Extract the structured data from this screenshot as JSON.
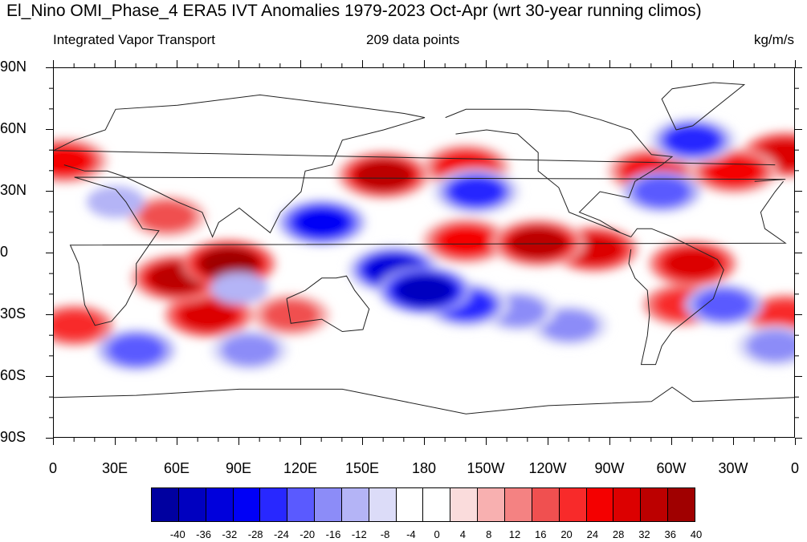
{
  "title": "El_Nino OMI_Phase_4 ERA5 IVT Anomalies 1979-2023 Oct-Apr (wrt 30-year running climos)",
  "subtitle_left": "Integrated Vapor Transport",
  "subtitle_center": "209 data points",
  "subtitle_right": "kg/m/s",
  "lat_labels": [
    "90N",
    "60N",
    "30N",
    "0",
    "30S",
    "60S",
    "90S"
  ],
  "lon_labels": [
    "0",
    "30E",
    "60E",
    "90E",
    "120E",
    "150E",
    "180",
    "150W",
    "120W",
    "90W",
    "60W",
    "30W",
    "0"
  ],
  "colorbar": {
    "labels": [
      "-40",
      "-36",
      "-32",
      "-28",
      "-24",
      "-20",
      "-16",
      "-12",
      "-8",
      "-4",
      "0",
      "4",
      "8",
      "12",
      "16",
      "20",
      "24",
      "28",
      "32",
      "36",
      "40"
    ],
    "colors": [
      "#00007a",
      "#0000a0",
      "#0000c0",
      "#0000dc",
      "#0000f6",
      "#2828ff",
      "#5a5aff",
      "#8c8cf8",
      "#b4b4f6",
      "#dcdcf8",
      "#ffffff",
      "#ffffff",
      "#fadcdc",
      "#f8b0b0",
      "#f48282",
      "#f05050",
      "#f82a2a",
      "#f40000",
      "#dc0000",
      "#bc0000",
      "#a00000",
      "#800000"
    ]
  },
  "chart_data": {
    "type": "heatmap",
    "title": "El_Nino OMI_Phase_4 ERA5 IVT Anomalies 1979-2023 Oct-Apr (wrt 30-year running climos)",
    "variable": "Integrated Vapor Transport",
    "units": "kg/m/s",
    "sample_size": "209 data points",
    "xlim": [
      0,
      360
    ],
    "ylim": [
      -90,
      90
    ],
    "contour_levels": [
      -40,
      -36,
      -32,
      -28,
      -24,
      -20,
      -16,
      -12,
      -8,
      -4,
      0,
      4,
      8,
      12,
      16,
      20,
      24,
      28,
      32,
      36,
      40
    ],
    "anomalies": [
      {
        "lon": 180,
        "lat": -18,
        "value": -36
      },
      {
        "lon": 165,
        "lat": -8,
        "value": -32
      },
      {
        "lon": 200,
        "lat": -25,
        "value": -24
      },
      {
        "lon": 225,
        "lat": -28,
        "value": -16
      },
      {
        "lon": 130,
        "lat": 15,
        "value": -28
      },
      {
        "lon": 205,
        "lat": 30,
        "value": -24
      },
      {
        "lon": 250,
        "lat": -35,
        "value": -16
      },
      {
        "lon": 90,
        "lat": -17,
        "value": -12
      },
      {
        "lon": 30,
        "lat": 25,
        "value": -12
      },
      {
        "lon": 295,
        "lat": 30,
        "value": -20
      },
      {
        "lon": 310,
        "lat": 55,
        "value": -24
      },
      {
        "lon": 325,
        "lat": -25,
        "value": -20
      },
      {
        "lon": 40,
        "lat": -47,
        "value": -20
      },
      {
        "lon": 95,
        "lat": -47,
        "value": -16
      },
      {
        "lon": 350,
        "lat": -45,
        "value": -16
      },
      {
        "lon": 85,
        "lat": -5,
        "value": 36
      },
      {
        "lon": 60,
        "lat": -12,
        "value": 32
      },
      {
        "lon": 75,
        "lat": -30,
        "value": 28
      },
      {
        "lon": 235,
        "lat": 5,
        "value": 32
      },
      {
        "lon": 200,
        "lat": 6,
        "value": 24
      },
      {
        "lon": 262,
        "lat": 2,
        "value": 28
      },
      {
        "lon": 160,
        "lat": 38,
        "value": 32
      },
      {
        "lon": 200,
        "lat": 42,
        "value": 24
      },
      {
        "lon": 310,
        "lat": -5,
        "value": 28
      },
      {
        "lon": 305,
        "lat": -25,
        "value": 20
      },
      {
        "lon": 290,
        "lat": 40,
        "value": 24
      },
      {
        "lon": 330,
        "lat": 40,
        "value": 24
      },
      {
        "lon": 355,
        "lat": 48,
        "value": 28
      },
      {
        "lon": 5,
        "lat": 45,
        "value": 24
      },
      {
        "lon": 355,
        "lat": -30,
        "value": 20
      },
      {
        "lon": 10,
        "lat": -35,
        "value": 20
      },
      {
        "lon": 115,
        "lat": -30,
        "value": 16
      },
      {
        "lon": 55,
        "lat": 18,
        "value": 16
      }
    ]
  }
}
